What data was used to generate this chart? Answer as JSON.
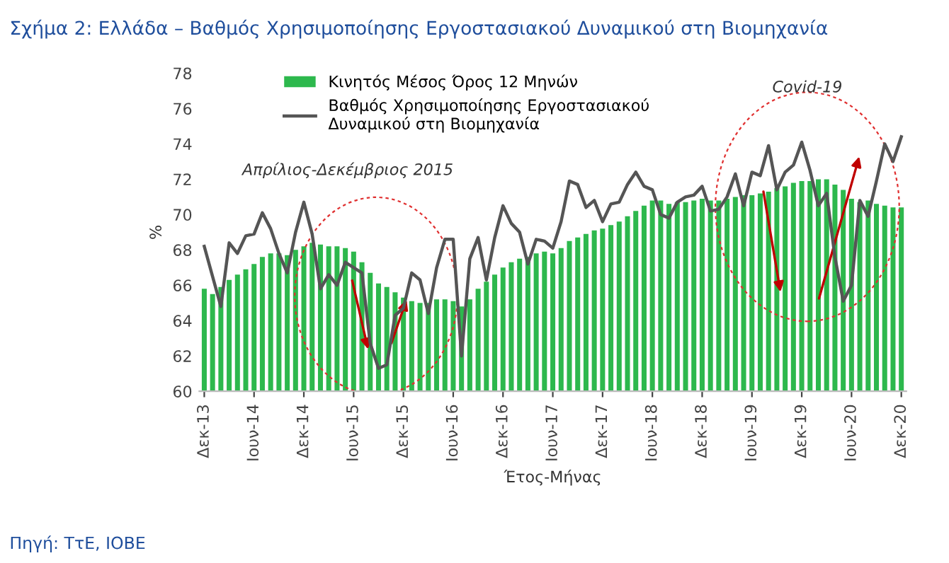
{
  "chart_data": {
    "type": "bar",
    "title": "Σχήμα 2: Ελλάδα – Βαθμός Χρησιμοποίησης Εργοστασιακού Δυναμικού στη Βιομηχανία",
    "xlabel": "Έτος-Μήνας",
    "ylabel": "%",
    "categories": [
      "Δεκ-13",
      null,
      null,
      null,
      null,
      null,
      "Ιουν-14",
      null,
      null,
      null,
      null,
      null,
      "Δεκ-14",
      null,
      null,
      null,
      null,
      null,
      "Ιουν-15",
      null,
      null,
      null,
      null,
      null,
      "Δεκ-15",
      null,
      null,
      null,
      null,
      null,
      "Ιουν-16",
      null,
      null,
      null,
      null,
      null,
      "Δεκ-16",
      null,
      null,
      null,
      null,
      null,
      "Ιουν-17",
      null,
      null,
      null,
      null,
      null,
      "Δεκ-17",
      null,
      null,
      null,
      null,
      null,
      "Ιουν-18",
      null,
      null,
      null,
      null,
      null,
      "Δεκ-18",
      null,
      null,
      null,
      null,
      null,
      "Ιουν-19",
      null,
      null,
      null,
      null,
      null,
      "Δεκ-19",
      null,
      null,
      null,
      null,
      null,
      "Ιουν-20",
      null,
      null,
      null,
      null,
      null,
      "Δεκ-20"
    ],
    "series": [
      {
        "name": "Κινητός Μέσος Όρος 12 Μηνών",
        "color": "#2db84d",
        "values": [
          65.8,
          65.5,
          65.9,
          66.3,
          66.6,
          66.9,
          67.2,
          67.6,
          67.8,
          67.8,
          67.7,
          68.0,
          68.2,
          68.4,
          68.3,
          68.2,
          68.2,
          68.1,
          67.9,
          67.3,
          66.7,
          66.1,
          65.9,
          65.6,
          65.3,
          65.1,
          65.0,
          65.0,
          65.2,
          65.2,
          65.1,
          64.8,
          65.2,
          65.8,
          66.2,
          66.6,
          67.0,
          67.3,
          67.5,
          67.6,
          67.8,
          67.9,
          67.8,
          68.1,
          68.5,
          68.7,
          68.9,
          69.1,
          69.2,
          69.4,
          69.6,
          69.9,
          70.2,
          70.5,
          70.8,
          70.8,
          70.6,
          70.7,
          70.7,
          70.8,
          70.9,
          70.8,
          70.8,
          70.9,
          71.0,
          71.1,
          71.1,
          71.2,
          71.3,
          71.5,
          71.6,
          71.8,
          71.9,
          71.9,
          72.0,
          72.0,
          71.7,
          71.4,
          70.9,
          70.7,
          70.8,
          70.6,
          70.5,
          70.4,
          70.4
        ]
      },
      {
        "name": "Βαθμός Χρησιμοποίησης Εργοστασιακού\nΔυναμικού στη Βιομηχανία",
        "type": "line",
        "color": "#555555",
        "values": [
          68.2,
          66.5,
          64.8,
          68.4,
          67.8,
          68.8,
          68.9,
          70.1,
          69.2,
          67.8,
          66.7,
          69.0,
          70.7,
          68.9,
          65.8,
          66.6,
          66.0,
          67.3,
          67.0,
          66.7,
          62.7,
          61.3,
          61.5,
          64.3,
          64.7,
          66.7,
          66.3,
          64.4,
          67.0,
          68.6,
          68.6,
          62.0,
          67.5,
          68.7,
          66.3,
          68.7,
          70.5,
          69.5,
          69.0,
          67.2,
          68.6,
          68.5,
          68.1,
          69.6,
          71.9,
          71.7,
          70.4,
          70.8,
          69.6,
          70.6,
          70.7,
          71.7,
          72.4,
          71.6,
          71.4,
          70.0,
          69.8,
          70.7,
          71.0,
          71.1,
          71.6,
          70.2,
          70.3,
          71.0,
          72.3,
          70.5,
          72.4,
          72.2,
          73.9,
          71.4,
          72.4,
          72.8,
          74.1,
          72.5,
          70.5,
          71.2,
          67.6,
          65.1,
          66.0,
          70.8,
          69.9,
          71.9,
          74.0,
          73.0,
          74.4
        ]
      }
    ],
    "ylim": [
      60,
      78
    ],
    "yticks": [
      60,
      62,
      64,
      66,
      68,
      70,
      72,
      74,
      76,
      78
    ],
    "grid": false,
    "legend": "top left",
    "marker": "none",
    "line_style": "solid",
    "annotations": [
      "Απρίλιος-Δεκέμβριος 2015",
      "Covid-19",
      "Πηγή: ΤτΕ, ΙΟΒΕ"
    ]
  }
}
